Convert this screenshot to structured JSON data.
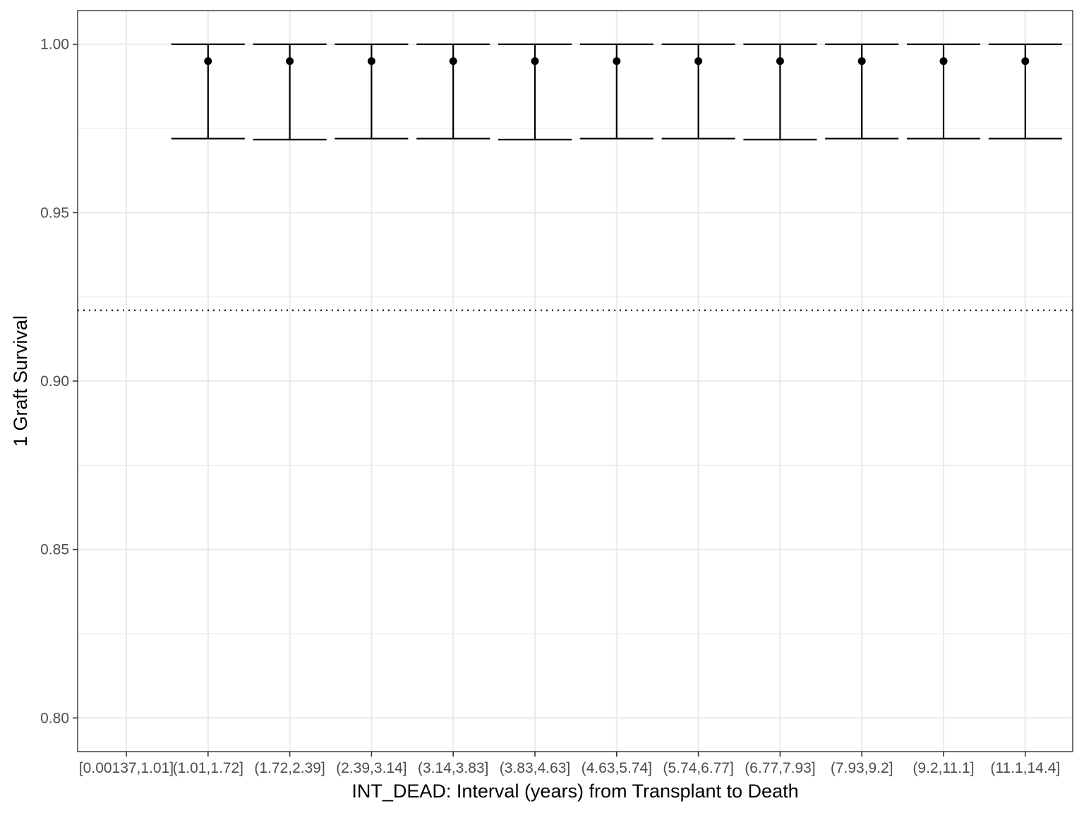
{
  "chart_data": {
    "type": "errorbar",
    "xlabel": "INT_DEAD: Interval (years) from Transplant to Death",
    "ylabel": "1 Graft Survival",
    "ylim": [
      0.79,
      1.01
    ],
    "yticks": [
      0.8,
      0.85,
      0.9,
      0.95,
      1.0
    ],
    "ytick_labels": [
      "0.80",
      "0.85",
      "0.90",
      "0.95",
      "1.00"
    ],
    "categories": [
      "[0.00137,1.01]",
      "(1.01,1.72]",
      "(1.72,2.39]",
      "(2.39,3.14]",
      "(3.14,3.83]",
      "(3.83,4.63]",
      "(4.63,5.74]",
      "(5.74,6.77]",
      "(6.77,7.93]",
      "(7.93,9.2]",
      "(9.2,11.1]",
      "(11.1,14.4]"
    ],
    "values": [
      null,
      0.995,
      0.995,
      0.995,
      0.995,
      0.995,
      0.995,
      0.995,
      0.995,
      0.995,
      0.995,
      0.995
    ],
    "lower": [
      null,
      0.972,
      0.9717,
      0.972,
      0.972,
      0.9717,
      0.972,
      0.972,
      0.9717,
      0.972,
      0.972,
      0.972
    ],
    "upper": [
      null,
      1.0,
      1.0,
      1.0,
      1.0,
      1.0,
      1.0,
      1.0,
      1.0,
      1.0,
      1.0,
      1.0
    ],
    "reference_line": {
      "y": 0.921,
      "style": "dotted"
    },
    "grid": true,
    "theme": "bw",
    "colors": {
      "mark": "#000000",
      "grid": "#ebebeb",
      "panel_border": "#333333",
      "tick_text": "#4d4d4d"
    }
  }
}
